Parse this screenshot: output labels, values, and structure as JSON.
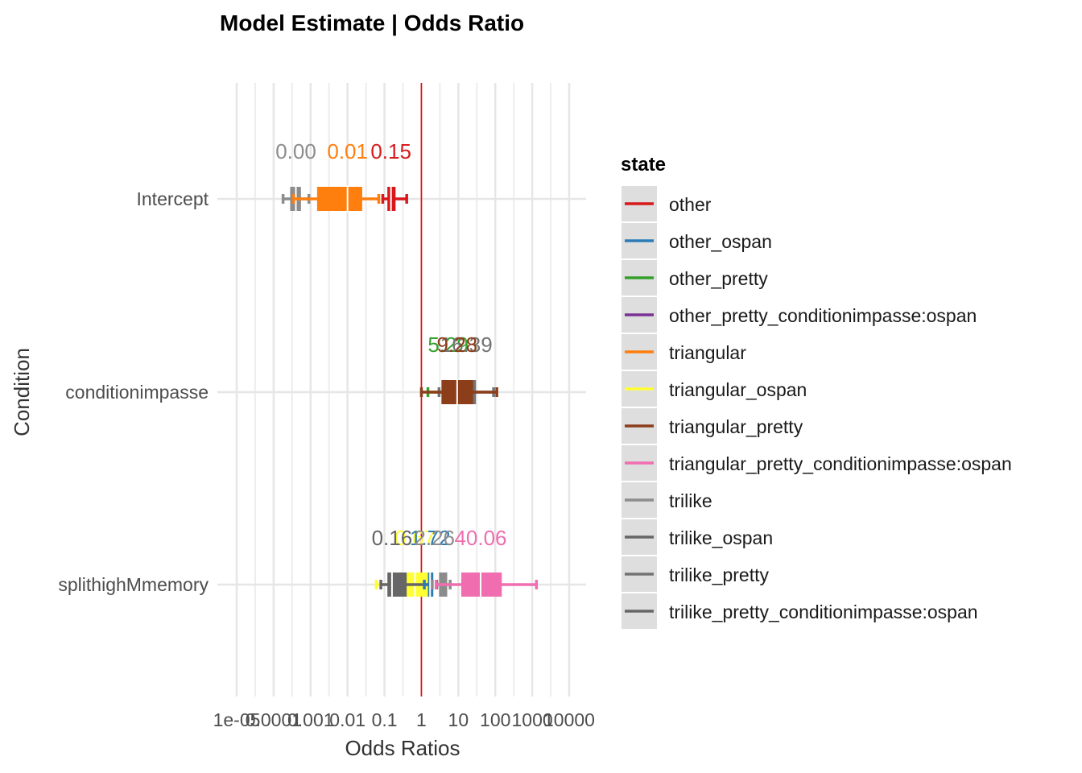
{
  "chart_data": {
    "type": "forest",
    "title": "Model Estimate | Odds Ratio",
    "xlabel": "Odds Ratios",
    "ylabel": "Condition",
    "x_scale": "log10",
    "xlim": [
      1e-05,
      10000
    ],
    "x_ticks": [
      1e-05,
      0.0001,
      0.001,
      0.01,
      0.1,
      1,
      10,
      100,
      1000,
      10000
    ],
    "x_tick_labels": [
      "1e-05",
      "0.0001",
      "0.001",
      "0.01",
      "0.1",
      "1",
      "10",
      "100",
      "1000",
      "10000"
    ],
    "reference_line": 1,
    "reference_color": "#ff0000",
    "categories": [
      "Intercept",
      "conditionimpasse",
      "splithighMmemory"
    ],
    "legend": {
      "title": "state",
      "position": "right",
      "entries": [
        {
          "label": "other",
          "color": "#d7191c"
        },
        {
          "label": "other_ospan",
          "color": "#2c7bb6"
        },
        {
          "label": "other_pretty",
          "color": "#33a02c"
        },
        {
          "label": "other_pretty_conditionimpasse:ospan",
          "color": "#7b3294"
        },
        {
          "label": "triangular",
          "color": "#ff7f0e"
        },
        {
          "label": "triangular_ospan",
          "color": "#ffff33"
        },
        {
          "label": "triangular_pretty",
          "color": "#8c3d1a"
        },
        {
          "label": "triangular_pretty_conditionimpasse:ospan",
          "color": "#f06eb0"
        },
        {
          "label": "trilike",
          "color": "#8c8c8c"
        },
        {
          "label": "trilike_ospan",
          "color": "#666666"
        },
        {
          "label": "trilike_pretty",
          "color": "#737373"
        },
        {
          "label": "trilike_pretty_conditionimpasse:ospan",
          "color": "#666666"
        }
      ]
    },
    "series": [
      {
        "category": "Intercept",
        "state": "trilike",
        "color": "#8c8c8c",
        "estimate": 0.0004,
        "ci": [
          0.00018,
          0.0009
        ],
        "ci_inner": [
          0.00028,
          0.00055
        ],
        "label": "0.00"
      },
      {
        "category": "Intercept",
        "state": "triangular",
        "color": "#ff7f0e",
        "estimate": 0.01,
        "ci": [
          0.00035,
          0.07
        ],
        "ci_inner": [
          0.0015,
          0.025
        ],
        "label": "0.01"
      },
      {
        "category": "Intercept",
        "state": "other",
        "color": "#d7191c",
        "estimate": 0.15,
        "ci": [
          0.09,
          0.4
        ],
        "ci_inner": [
          0.12,
          0.2
        ],
        "label": "0.15"
      },
      {
        "category": "conditionimpasse",
        "state": "other_pretty",
        "color": "#33a02c",
        "estimate": 5.29,
        "ci": [
          1.5,
          20
        ],
        "ci_inner": [
          3.5,
          8
        ],
        "label": "5.29"
      },
      {
        "category": "conditionimpasse",
        "state": "trilike_pretty",
        "color": "#737373",
        "estimate": 16.39,
        "ci": [
          3,
          90
        ],
        "ci_inner": [
          8,
          30
        ],
        "label": "16.39"
      },
      {
        "category": "conditionimpasse",
        "state": "triangular_pretty",
        "color": "#8c3d1a",
        "estimate": 9.28,
        "ci": [
          1,
          110
        ],
        "ci_inner": [
          3.5,
          25
        ],
        "label": "9.28"
      },
      {
        "category": "splithighMmemory",
        "state": "triangular_ospan",
        "color": "#ffff33",
        "estimate": 0.67,
        "ci": [
          0.06,
          2
        ],
        "ci_inner": [
          0.25,
          1.5
        ],
        "label": "0.67"
      },
      {
        "category": "splithighMmemory",
        "state": "trilike_ospan",
        "color": "#666666",
        "estimate": 0.16,
        "ci": [
          0.08,
          2.6
        ],
        "ci_inner": [
          0.12,
          0.4
        ],
        "label": "0.16"
      },
      {
        "category": "splithighMmemory",
        "state": "other_ospan",
        "color": "#2c7bb6",
        "estimate": 1.72,
        "ci": [
          1.2,
          2.5
        ],
        "ci_inner": [
          1.5,
          2.1
        ],
        "label": "1.72"
      },
      {
        "category": "splithighMmemory",
        "state": "trilike_pretty_conditionimpasse:ospan",
        "color": "#8c8c8c",
        "estimate": 2.26,
        "ci": [
          2,
          6
        ],
        "ci_inner": [
          3,
          5
        ],
        "label": "2.26"
      },
      {
        "category": "splithighMmemory",
        "state": "triangular_pretty_conditionimpasse:ospan",
        "color": "#f06eb0",
        "estimate": 40.06,
        "ci": [
          2.5,
          1300
        ],
        "ci_inner": [
          12,
          150
        ],
        "label": "40.06"
      }
    ]
  }
}
